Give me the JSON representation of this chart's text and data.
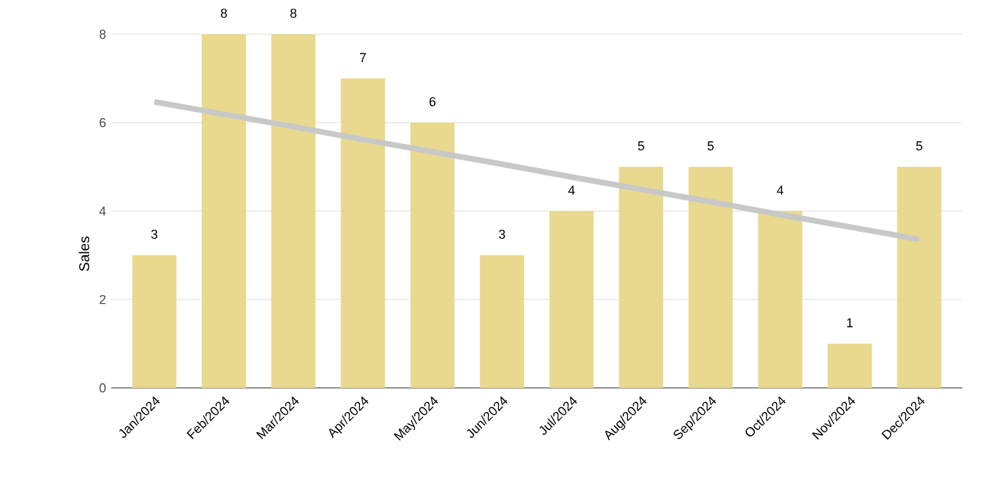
{
  "chart_data": {
    "type": "bar",
    "ylabel": "Sales",
    "categories": [
      "Jan/2024",
      "Feb/2024",
      "Mar/2024",
      "Apr/2024",
      "May/2024",
      "Jun/2024",
      "Jul/2024",
      "Aug/2024",
      "Sep/2024",
      "Oct/2024",
      "Nov/2024",
      "Dec/2024"
    ],
    "series": [
      {
        "color": "#e8d98f",
        "values": [
          3,
          8,
          8,
          7,
          6,
          3,
          4,
          5,
          5,
          4,
          1,
          5
        ],
        "value_labels": [
          "3",
          "8",
          "8",
          "7",
          "6",
          "3",
          "4",
          "5",
          "5",
          "4",
          "1",
          "5"
        ]
      },
      {
        "type": "line",
        "color": "#c8c8c8",
        "values": [
          6.47,
          6.19,
          5.91,
          5.62,
          5.34,
          5.06,
          4.77,
          4.49,
          4.21,
          3.92,
          3.64,
          3.36
        ]
      }
    ],
    "ylim": [
      0,
      8
    ],
    "yticks": [
      0,
      2,
      4,
      6,
      8
    ],
    "grid": "y"
  }
}
